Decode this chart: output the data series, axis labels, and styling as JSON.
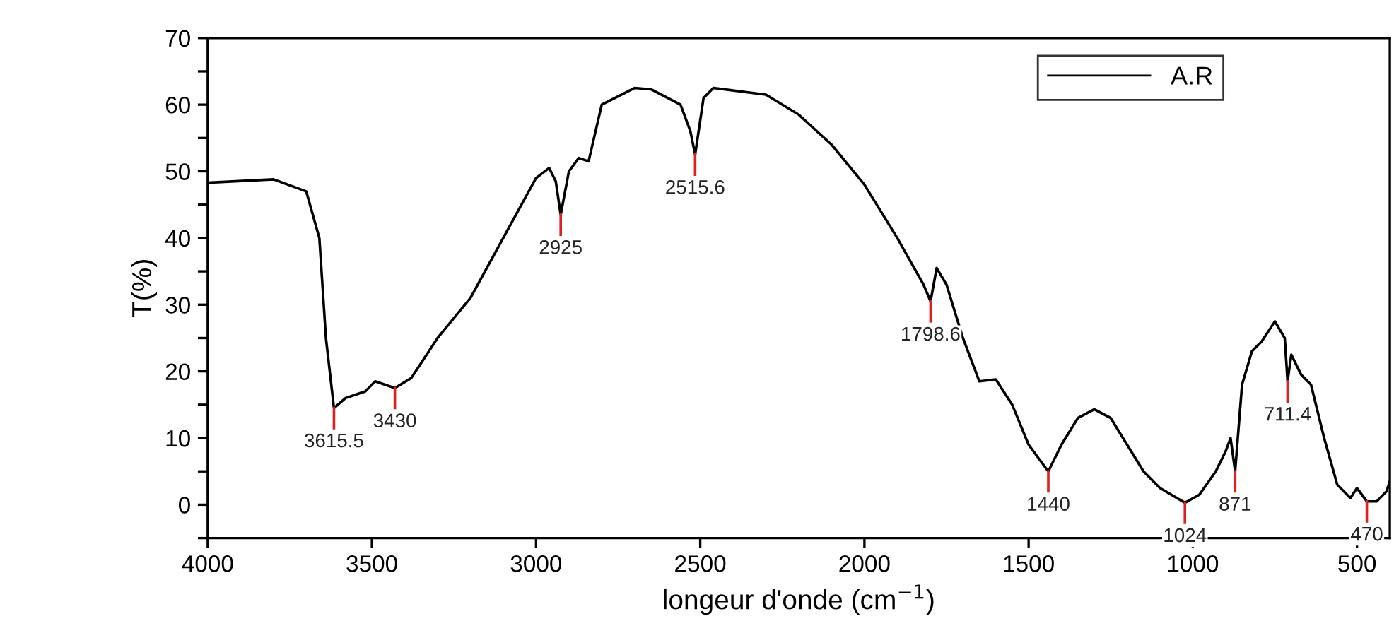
{
  "chart_data": {
    "type": "line",
    "xlabel": "longeur d'onde (cm$^{−1}$)",
    "ylabel": "T(%)",
    "xlim": [
      4000,
      400
    ],
    "xticks": [
      4000,
      3500,
      3000,
      2500,
      2000,
      1500,
      1000,
      500
    ],
    "ylim": [
      -5,
      70
    ],
    "yticks": [
      0,
      10,
      20,
      30,
      40,
      50,
      60,
      70,
      {
        "value": -5,
        "label": null
      },
      {
        "value": 5,
        "label": null
      },
      {
        "value": 15,
        "label": null
      },
      {
        "value": 25,
        "label": null
      },
      {
        "value": 35,
        "label": null
      },
      {
        "value": 45,
        "label": null
      },
      {
        "value": 55,
        "label": null
      },
      {
        "value": 65,
        "label": null
      }
    ],
    "grid": false,
    "legend": "top right",
    "marker": "none",
    "line_style": "solid",
    "series": [
      {
        "name": "A.R",
        "color": "#000000",
        "x": [
          4000,
          3800,
          3700,
          3660,
          3640,
          3615.5,
          3580,
          3520,
          3490,
          3430,
          3380,
          3300,
          3200,
          3100,
          3000,
          2960,
          2940,
          2925,
          2900,
          2870,
          2840,
          2800,
          2700,
          2650,
          2560,
          2530,
          2515.6,
          2490,
          2460,
          2300,
          2200,
          2100,
          2000,
          1900,
          1820,
          1798.6,
          1780,
          1750,
          1700,
          1650,
          1600,
          1550,
          1500,
          1440,
          1400,
          1350,
          1300,
          1250,
          1200,
          1150,
          1100,
          1024,
          980,
          930,
          900,
          885,
          871,
          850,
          820,
          790,
          750,
          720,
          711.4,
          700,
          670,
          640,
          600,
          560,
          520,
          500,
          470,
          440,
          410,
          400
        ],
        "values": [
          48.3,
          48.8,
          47,
          40,
          25,
          14.5,
          16,
          17,
          18.5,
          17.5,
          19,
          25,
          31,
          40,
          49,
          50.5,
          48.5,
          43.5,
          50,
          52,
          51.5,
          60,
          62.5,
          62.3,
          60,
          56,
          52.5,
          61,
          62.5,
          61.5,
          58.5,
          54,
          48,
          40,
          33,
          30.5,
          35.5,
          33,
          25,
          18.5,
          18.8,
          15,
          9,
          5,
          9,
          13,
          14.3,
          13,
          9,
          5,
          2.5,
          0.3,
          1.5,
          5,
          8,
          10,
          5,
          18,
          23,
          24.5,
          27.5,
          25,
          18.5,
          22.5,
          19.5,
          18,
          10,
          3,
          1,
          2.5,
          0.5,
          0.5,
          2,
          3.5
        ]
      }
    ],
    "annotations": [
      {
        "text": "3615.5",
        "x": 3615.5,
        "y": 14.5
      },
      {
        "text": "3430",
        "x": 3430,
        "y": 17.5
      },
      {
        "text": "2925",
        "x": 2925,
        "y": 43.5
      },
      {
        "text": "2515.6",
        "x": 2515.6,
        "y": 52.5
      },
      {
        "text": "1798.6",
        "x": 1798.6,
        "y": 30.5
      },
      {
        "text": "1440",
        "x": 1440,
        "y": 5
      },
      {
        "text": "1024",
        "x": 1024,
        "y": 0.3
      },
      {
        "text": "871",
        "x": 871,
        "y": 5
      },
      {
        "text": "711.4",
        "x": 711.4,
        "y": 18.5
      },
      {
        "text": "470",
        "x": 470,
        "y": 0.5
      }
    ]
  }
}
